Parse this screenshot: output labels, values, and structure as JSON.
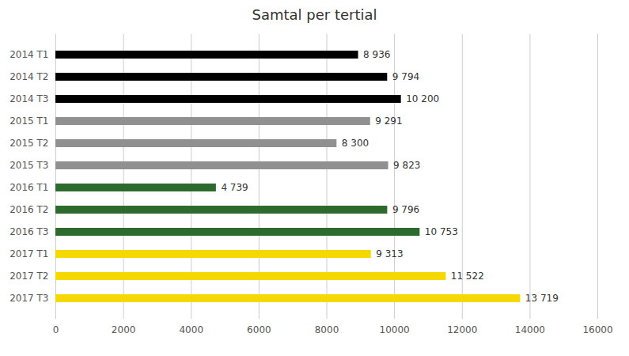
{
  "chart_data": {
    "type": "bar",
    "title": "Samtal per tertial",
    "orientation": "horizontal",
    "categories": [
      "2014 T1",
      "2014 T2",
      "2014 T3",
      "2015 T1",
      "2015 T2",
      "2015 T3",
      "2016 T1",
      "2016 T2",
      "2016 T3",
      "2017 T1",
      "2017 T2",
      "2017 T3"
    ],
    "values": [
      8936,
      9794,
      10200,
      9291,
      8300,
      9823,
      4739,
      9796,
      10753,
      9313,
      11522,
      13719
    ],
    "value_labels": [
      "8 936",
      "9 794",
      "10 200",
      "9 291",
      "8 300",
      "9 823",
      "4 739",
      "9 796",
      "10 753",
      "9 313",
      "11 522",
      "13 719"
    ],
    "data_labels": true,
    "colors": [
      "#000000",
      "#000000",
      "#000000",
      "#909090",
      "#909090",
      "#909090",
      "#2d6a2d",
      "#2d6a2d",
      "#2d6a2d",
      "#f5d800",
      "#f5d800",
      "#f5d800"
    ],
    "xlim": [
      0,
      16000
    ],
    "xticks": [
      0,
      2000,
      4000,
      6000,
      8000,
      10000,
      12000,
      14000,
      16000
    ],
    "grid": true
  }
}
